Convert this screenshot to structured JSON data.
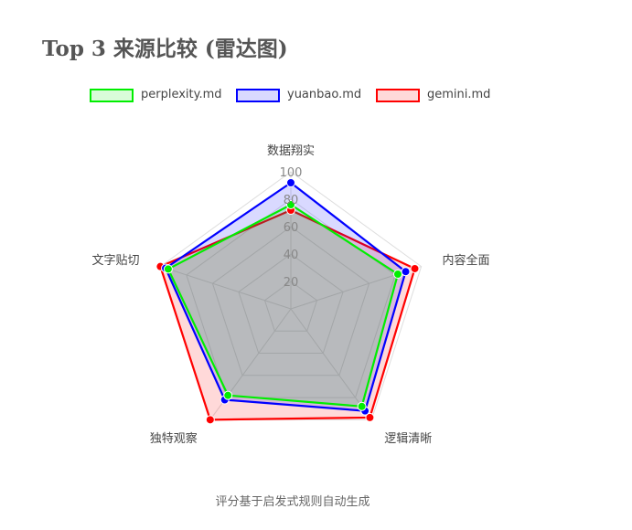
{
  "title": "Top 3 来源比较 (雷达图)",
  "footnote": "评分基于启发式规则自动生成",
  "chart_data": {
    "type": "radar",
    "axes": [
      "数据翔实",
      "内容全面",
      "逻辑清晰",
      "独特观察",
      "文字贴切"
    ],
    "rlim": [
      0,
      100
    ],
    "ticks": [
      "20",
      "40",
      "60",
      "80",
      "100"
    ],
    "tick_values": [
      20,
      40,
      60,
      80,
      100
    ],
    "legend_position": "top",
    "series": [
      {
        "name": "gemini.md",
        "values": [
          72,
          95,
          98,
          100,
          100
        ],
        "color": "#ff0000",
        "fill": "rgba(255,0,0,0.15)"
      },
      {
        "name": "yuanbao.md",
        "values": [
          92,
          88,
          92,
          82,
          96
        ],
        "color": "#0000ff",
        "fill": "rgba(0,0,255,0.15)"
      },
      {
        "name": "perplexity.md",
        "values": [
          76,
          82,
          88,
          78,
          94
        ],
        "color": "#00ee00",
        "fill": "rgba(0,200,0,0.15)"
      }
    ]
  }
}
